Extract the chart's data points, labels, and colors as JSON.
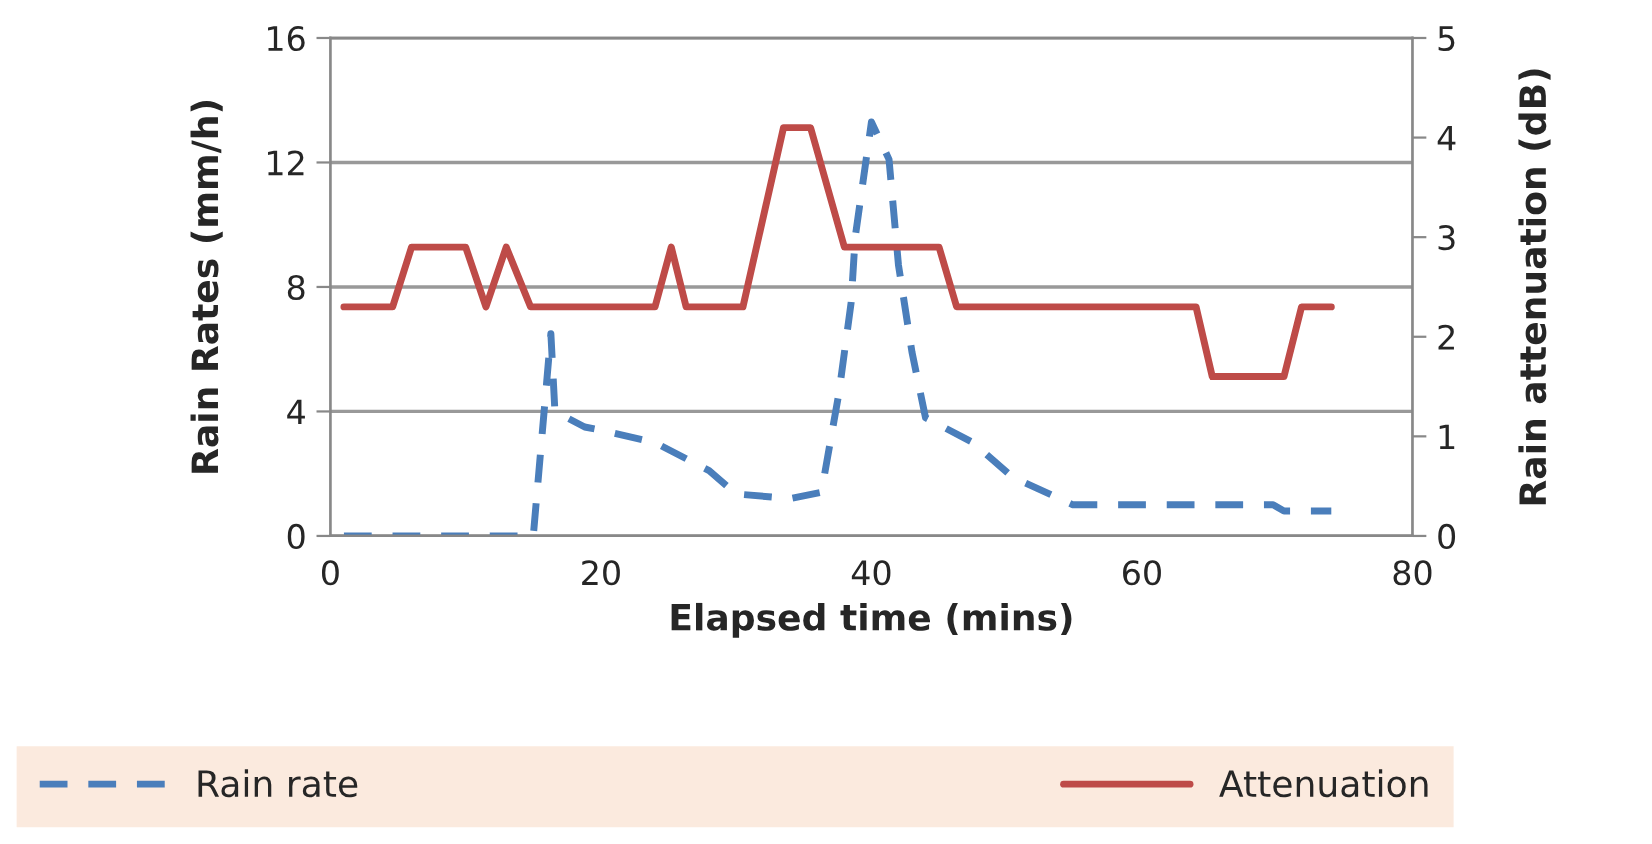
{
  "chart_data": {
    "type": "line",
    "xlabel": "Elapsed time (mins)",
    "ylabel": "Rain Rates (mm/h)",
    "y2label": "Rain attenuation (dB)",
    "xlim": [
      0,
      80
    ],
    "xticks": [
      0,
      20,
      40,
      60,
      80
    ],
    "ylim": [
      0,
      16
    ],
    "yticks": [
      0,
      4,
      8,
      12,
      16
    ],
    "y2lim": [
      0,
      5
    ],
    "y2ticks": [
      0,
      1,
      2,
      3,
      4,
      5
    ],
    "grid": "y",
    "legend": "bottom",
    "series": [
      {
        "name": "Rain rate",
        "color": "#4a7ebb",
        "line_style": "dashed",
        "x": [
          1,
          15,
          16.3,
          16.6,
          18.8,
          20,
          24,
          28,
          30,
          34,
          36.3,
          37.6,
          38.5,
          38.8,
          40,
          41.3,
          42,
          43,
          44,
          47.5,
          50.4,
          54.9,
          69.7,
          70.5,
          74
        ],
        "values": [
          0,
          0,
          6.5,
          4.0,
          3.5,
          3.4,
          3.0,
          2.1,
          1.35,
          1.2,
          1.4,
          4.6,
          7.5,
          9.6,
          13.3,
          12.1,
          8.7,
          5.9,
          3.8,
          3.0,
          1.9,
          1.0,
          1.0,
          0.8,
          0.8
        ]
      },
      {
        "name": "Attenuation",
        "color": "#be4b48",
        "line_style": "solid",
        "axis": "y2",
        "x": [
          1,
          4.6,
          6,
          10,
          11.5,
          13,
          14.8,
          24,
          25.2,
          26.3,
          30.5,
          33.5,
          35.5,
          38,
          45,
          46.3,
          64,
          65.2,
          70.5,
          71.8,
          74
        ],
        "values": [
          2.3,
          2.3,
          2.9,
          2.9,
          2.3,
          2.9,
          2.3,
          2.3,
          2.9,
          2.3,
          2.3,
          4.1,
          4.1,
          2.9,
          2.9,
          2.3,
          2.3,
          1.6,
          1.6,
          2.3,
          2.3
        ]
      }
    ]
  }
}
